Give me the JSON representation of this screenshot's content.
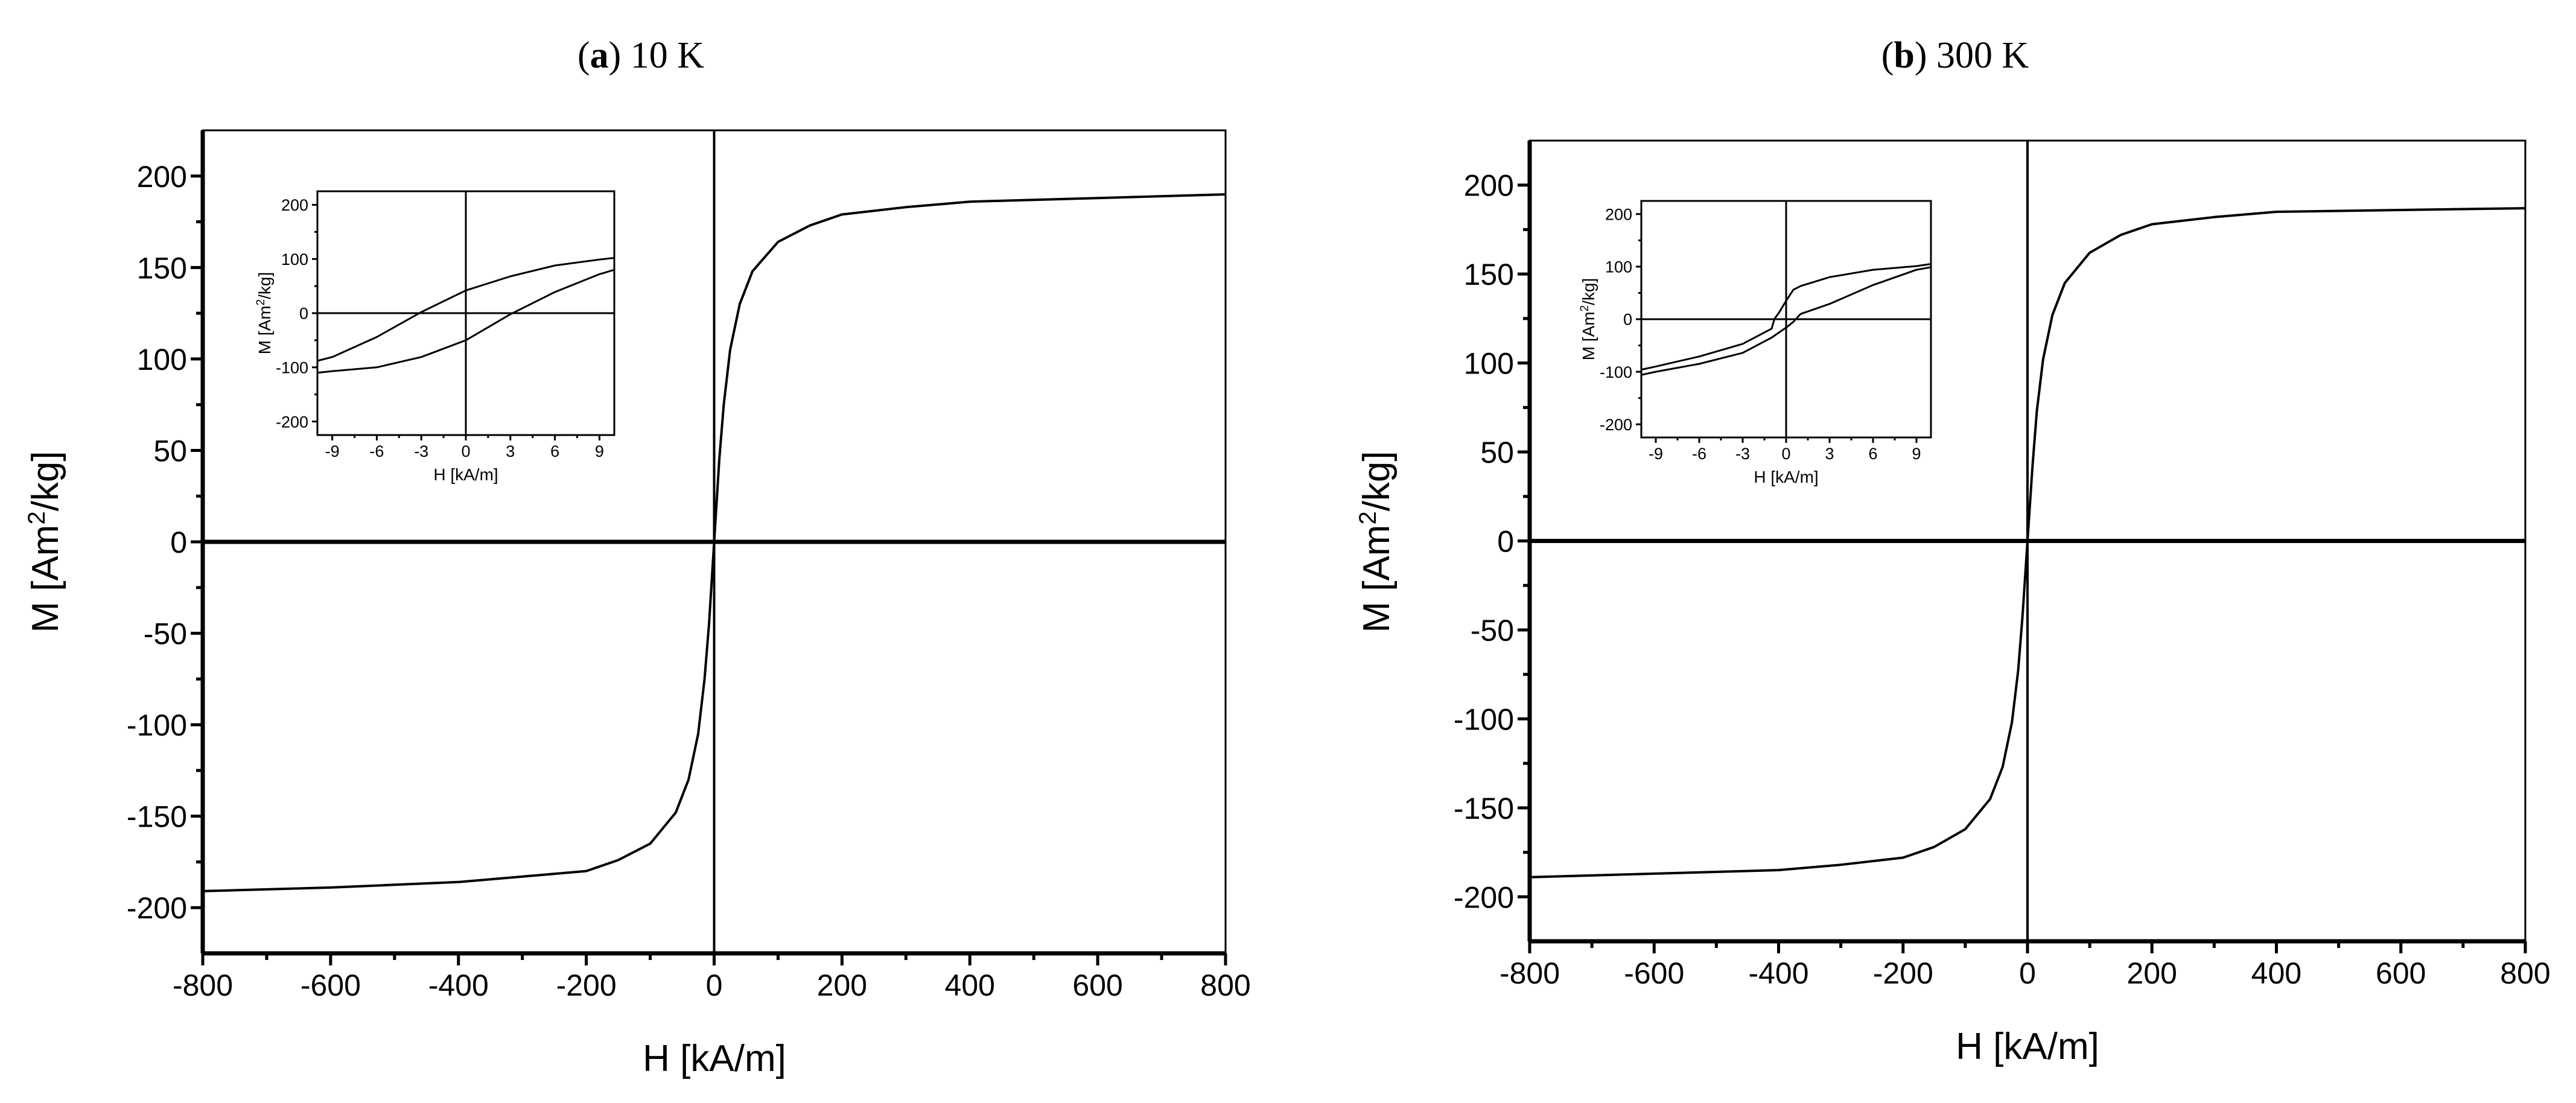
{
  "chart_data": [
    {
      "type": "line",
      "panel_label": "a",
      "title": " 10 K",
      "xlabel": "H [kA/m]",
      "ylabel_main": "M [Am",
      "ylabel_sup": "2",
      "ylabel_tail": "/kg]",
      "xlim": [
        -800,
        800
      ],
      "ylim": [
        -225,
        225
      ],
      "xticks": [
        -800,
        -600,
        -400,
        -200,
        0,
        200,
        400,
        600,
        800
      ],
      "yticks": [
        -200,
        -150,
        -100,
        -50,
        0,
        50,
        100,
        150,
        200
      ],
      "grid": false,
      "color": "#000000",
      "series": [
        {
          "x": [
            -800,
            -600,
            -400,
            -300,
            -200,
            -150,
            -100,
            -60,
            -40,
            -25,
            -15,
            -8,
            0,
            8,
            15,
            25,
            40,
            60,
            100,
            150,
            200,
            300,
            400,
            600,
            800
          ],
          "y": [
            -191,
            -189,
            -186,
            -183,
            -180,
            -174,
            -165,
            -148,
            -130,
            -105,
            -75,
            -45,
            0,
            45,
            75,
            105,
            130,
            148,
            164,
            173,
            179,
            183,
            186,
            188,
            190
          ]
        }
      ],
      "inset": {
        "xlabel": "H [kA/m]",
        "ylabel_main": "M [Am",
        "ylabel_sup": "2",
        "ylabel_tail": "/kg]",
        "xlim": [
          -10,
          10
        ],
        "ylim": [
          -225,
          225
        ],
        "xticks": [
          -9,
          -6,
          -3,
          0,
          3,
          6,
          9
        ],
        "yticks": [
          -200,
          -100,
          0,
          100,
          200
        ],
        "series": [
          {
            "x": [
              10,
              9,
              6,
              3,
              0,
              -3,
              -6,
              -9,
              -10
            ],
            "y": [
              102,
              99,
              88,
              68,
              42,
              2,
              -44,
              -81,
              -88
            ]
          },
          {
            "x": [
              -10,
              -9,
              -6,
              -3,
              0,
              3,
              6,
              9,
              10
            ],
            "y": [
              -110,
              -107,
              -100,
              -81,
              -50,
              -2,
              39,
              72,
              80
            ]
          }
        ]
      }
    },
    {
      "type": "line",
      "panel_label": "b",
      "title": " 300 K",
      "xlabel": "H [kA/m]",
      "ylabel_main": "M [Am",
      "ylabel_sup": "2",
      "ylabel_tail": "/kg]",
      "xlim": [
        -800,
        800
      ],
      "ylim": [
        -225,
        225
      ],
      "xticks": [
        -800,
        -600,
        -400,
        -200,
        0,
        200,
        400,
        600,
        800
      ],
      "yticks": [
        -200,
        -150,
        -100,
        -50,
        0,
        50,
        100,
        150,
        200
      ],
      "grid": false,
      "color": "#000000",
      "series": [
        {
          "x": [
            -800,
            -600,
            -400,
            -300,
            -200,
            -150,
            -100,
            -60,
            -40,
            -25,
            -15,
            -8,
            0,
            8,
            15,
            25,
            40,
            60,
            100,
            150,
            200,
            300,
            400,
            600,
            800
          ],
          "y": [
            -189,
            -187,
            -185,
            -182,
            -178,
            -172,
            -162,
            -145,
            -127,
            -102,
            -73,
            -42,
            0,
            42,
            73,
            102,
            127,
            145,
            162,
            172,
            178,
            182,
            185,
            186,
            187
          ]
        }
      ],
      "inset": {
        "xlabel": "H [kA/m]",
        "ylabel_main": "M [Am",
        "ylabel_sup": "2",
        "ylabel_tail": "/kg]",
        "xlim": [
          -10,
          10
        ],
        "ylim": [
          -225,
          225
        ],
        "xticks": [
          -9,
          -6,
          -3,
          0,
          3,
          6,
          9
        ],
        "yticks": [
          -200,
          -100,
          0,
          100,
          200
        ],
        "series": [
          {
            "x": [
              10,
              9,
              6,
              3,
              1,
              0.5,
              0,
              -0.5,
              -0.8,
              -1,
              -3,
              -6,
              -9,
              -10
            ],
            "y": [
              105,
              101,
              94,
              80,
              63,
              56,
              35,
              12,
              1,
              -18,
              -47,
              -71,
              -90,
              -96
            ]
          },
          {
            "x": [
              -10,
              -9,
              -6,
              -3,
              -1,
              0,
              0.5,
              1,
              3,
              6,
              9,
              10
            ],
            "y": [
              -106,
              -100,
              -85,
              -64,
              -35,
              -16,
              -5,
              10,
              29,
              65,
              94,
              99
            ]
          }
        ]
      }
    }
  ]
}
